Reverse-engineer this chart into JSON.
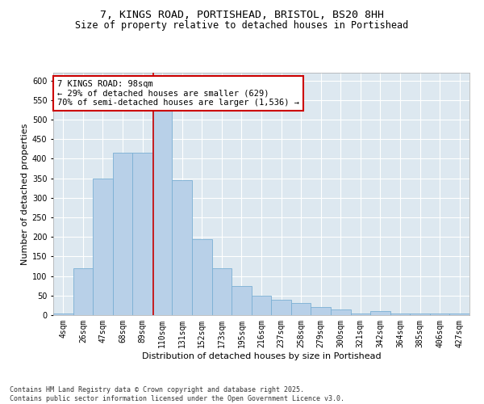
{
  "title_line1": "7, KINGS ROAD, PORTISHEAD, BRISTOL, BS20 8HH",
  "title_line2": "Size of property relative to detached houses in Portishead",
  "xlabel": "Distribution of detached houses by size in Portishead",
  "ylabel": "Number of detached properties",
  "bar_color": "#b8d0e8",
  "bar_edge_color": "#7aafd4",
  "background_color": "#dde8f0",
  "grid_color": "#ffffff",
  "categories": [
    "4sqm",
    "26sqm",
    "47sqm",
    "68sqm",
    "89sqm",
    "110sqm",
    "131sqm",
    "152sqm",
    "173sqm",
    "195sqm",
    "216sqm",
    "237sqm",
    "258sqm",
    "279sqm",
    "300sqm",
    "321sqm",
    "342sqm",
    "364sqm",
    "385sqm",
    "406sqm",
    "427sqm"
  ],
  "values": [
    5,
    120,
    350,
    415,
    415,
    540,
    345,
    195,
    120,
    75,
    50,
    40,
    30,
    20,
    15,
    5,
    10,
    5,
    5,
    5,
    5
  ],
  "ylim": [
    0,
    620
  ],
  "yticks": [
    0,
    50,
    100,
    150,
    200,
    250,
    300,
    350,
    400,
    450,
    500,
    550,
    600
  ],
  "annotation_line1": "7 KINGS ROAD: 98sqm",
  "annotation_line2": "← 29% of detached houses are smaller (629)",
  "annotation_line3": "70% of semi-detached houses are larger (1,536) →",
  "annotation_box_color": "#ffffff",
  "annotation_box_edge": "#cc0000",
  "vline_color": "#cc0000",
  "vline_x": 4.55,
  "footer_line1": "Contains HM Land Registry data © Crown copyright and database right 2025.",
  "footer_line2": "Contains public sector information licensed under the Open Government Licence v3.0.",
  "title_fontsize": 9.5,
  "subtitle_fontsize": 8.5,
  "axis_label_fontsize": 8,
  "tick_fontsize": 7,
  "annotation_fontsize": 7.5,
  "footer_fontsize": 6
}
